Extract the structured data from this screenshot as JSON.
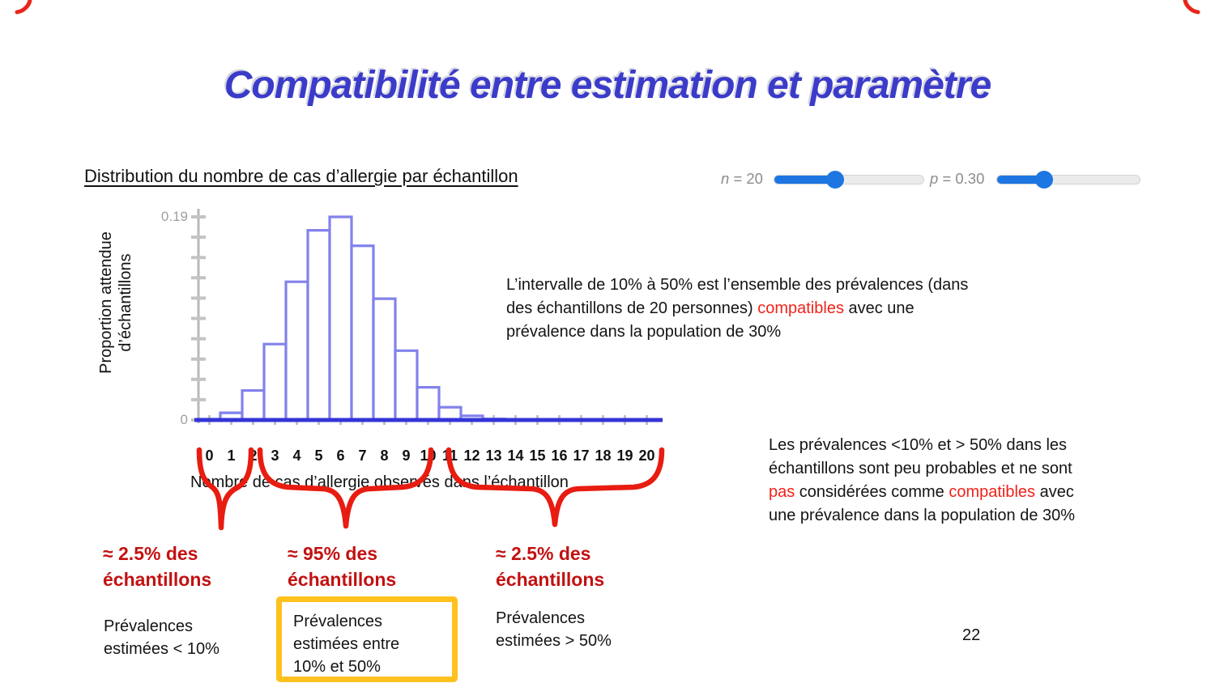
{
  "slide": {
    "title": "Compatibilité entre estimation et paramètre",
    "page_number": "22"
  },
  "sliders": {
    "accent_color": "#1d76e2",
    "n": {
      "var": "n",
      "value": "= 20",
      "fraction": 0.41
    },
    "p": {
      "var": "p",
      "value": "= 0.30",
      "fraction": 0.33
    }
  },
  "chart_data": {
    "type": "bar",
    "title": "Distribution du nombre de cas d’allergie par échantillon",
    "xlabel": "Nombre de cas d’allergie observés dans l’échantillon",
    "ylabel": "Proportion attendue\nd’échantillons",
    "categories": [
      "0",
      "1",
      "2",
      "3",
      "4",
      "5",
      "6",
      "7",
      "8",
      "9",
      "10",
      "11",
      "12",
      "13",
      "14",
      "15",
      "16",
      "17",
      "18",
      "19",
      "20"
    ],
    "values": [
      0.0008,
      0.0068,
      0.0278,
      0.0716,
      0.1304,
      0.1789,
      0.1916,
      0.1643,
      0.1144,
      0.0654,
      0.0308,
      0.012,
      0.0039,
      0.001,
      0.0002,
      0,
      0,
      0,
      0,
      0,
      0
    ],
    "ylim": [
      0,
      0.19
    ],
    "ymax_label": "0.19",
    "ymin_label": "0",
    "grid": false,
    "legend": null,
    "bar_fill_color": "#ffffff",
    "bar_edge_color": "#8282ec",
    "axis_line_color": "#3434d8",
    "tick_color": "#c3c3c3"
  },
  "annotations": {
    "middle_paragraph": {
      "lines": [
        [
          {
            "t": "L’intervalle de 10% à 50% est l’ensemble des prévalences (dans"
          }
        ],
        [
          {
            "t": "des échantillons de 20 personnes) "
          },
          {
            "t": "compatibles",
            "red": true
          },
          {
            "t": " avec une"
          }
        ],
        [
          {
            "t": "prévalence dans la population de 30%"
          }
        ]
      ]
    },
    "right_paragraph": {
      "lines": [
        [
          {
            "t": "Les prévalences <10% et > 50% dans les"
          }
        ],
        [
          {
            "t": "échantillons sont peu probables et ne sont"
          }
        ],
        [
          {
            "t": "pas",
            "red": true
          },
          {
            "t": " considérées comme "
          },
          {
            "t": "compatibles",
            "red": true
          },
          {
            "t": " avec"
          }
        ],
        [
          {
            "t": "une prévalence dans la population de 30%"
          }
        ]
      ]
    },
    "brace_labels": [
      {
        "text": "≈ 2.5% des\néchantillons"
      },
      {
        "text": "≈ 95% des\néchantillons"
      },
      {
        "text": "≈ 2.5% des\néchantillons"
      }
    ],
    "bottom_labels": {
      "left": "Prévalences\nestimées < 10%",
      "boxed": "Prévalences\nestimées entre\n10% et 50%",
      "right": "Prévalences\nestimées > 50%"
    },
    "colors": {
      "brace_red": "#e81c10",
      "dark_red_text": "#c31111",
      "red_word": "#ef231a",
      "highlight_box": "#fec11e"
    }
  }
}
